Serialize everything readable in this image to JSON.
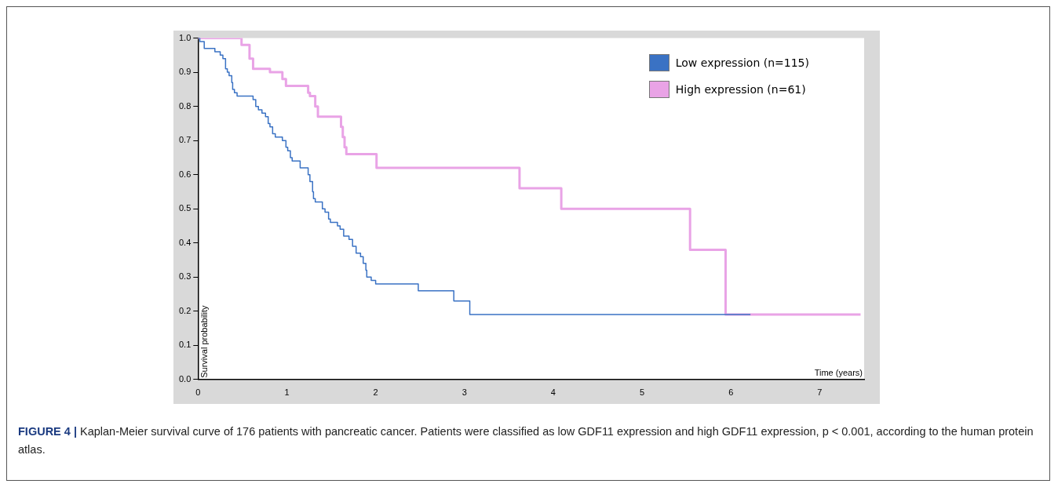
{
  "chart_data": {
    "type": "step",
    "xlabel": "Time (years)",
    "ylabel": "Survival probability",
    "xlim": [
      0,
      7.5
    ],
    "ylim": [
      0,
      1
    ],
    "xticks": [
      0,
      1,
      2,
      3,
      4,
      5,
      6,
      7
    ],
    "yticks": [
      {
        "value": 0,
        "label": "0.0"
      },
      {
        "value": 0.1,
        "label": "0.1"
      },
      {
        "value": 0.2,
        "label": "0.2"
      },
      {
        "value": 0.3,
        "label": "0.3"
      },
      {
        "value": 0.4,
        "label": "0.4"
      },
      {
        "value": 0.5,
        "label": "0.5"
      },
      {
        "value": 0.6,
        "label": "0.6"
      },
      {
        "value": 0.7,
        "label": "0.7"
      },
      {
        "value": 0.8,
        "label": "0.8"
      },
      {
        "value": 0.9,
        "label": "0.9"
      },
      {
        "value": 1,
        "label": "1.0"
      }
    ],
    "grid": false,
    "legend": "top right",
    "marker": "none",
    "line_style": "solid",
    "series": [
      {
        "name": "Low expression (n=115)",
        "color": "#3a72c4",
        "x": [
          0,
          0.02,
          0.07,
          0.11,
          0.19,
          0.25,
          0.28,
          0.31,
          0.33,
          0.35,
          0.38,
          0.39,
          0.41,
          0.44,
          0.62,
          0.65,
          0.68,
          0.72,
          0.76,
          0.79,
          0.81,
          0.84,
          0.87,
          0.95,
          0.99,
          1.01,
          1.04,
          1.06,
          1.15,
          1.24,
          1.26,
          1.29,
          1.3,
          1.32,
          1.4,
          1.43,
          1.47,
          1.49,
          1.57,
          1.6,
          1.64,
          1.7,
          1.74,
          1.78,
          1.83,
          1.86,
          1.89,
          1.9,
          1.95,
          2.0,
          2.48,
          2.88,
          3.06,
          6.22
        ],
        "values": [
          1,
          0.99,
          0.97,
          0.97,
          0.96,
          0.95,
          0.94,
          0.91,
          0.9,
          0.89,
          0.87,
          0.85,
          0.84,
          0.83,
          0.82,
          0.8,
          0.79,
          0.78,
          0.77,
          0.75,
          0.74,
          0.72,
          0.71,
          0.7,
          0.68,
          0.67,
          0.65,
          0.64,
          0.62,
          0.6,
          0.58,
          0.55,
          0.53,
          0.52,
          0.5,
          0.49,
          0.47,
          0.46,
          0.45,
          0.44,
          0.42,
          0.41,
          0.39,
          0.37,
          0.36,
          0.34,
          0.32,
          0.3,
          0.29,
          0.28,
          0.26,
          0.23,
          0.19,
          0.19
        ]
      },
      {
        "name": "High expression (n=61)",
        "color": "#e9a3e6",
        "x": [
          0,
          0.49,
          0.58,
          0.62,
          0.81,
          0.95,
          0.99,
          1.24,
          1.26,
          1.32,
          1.35,
          1.61,
          1.63,
          1.65,
          1.67,
          2.01,
          3.62,
          4.09,
          5.54,
          5.94,
          7.46
        ],
        "values": [
          1,
          0.98,
          0.94,
          0.91,
          0.9,
          0.88,
          0.86,
          0.84,
          0.83,
          0.8,
          0.77,
          0.74,
          0.71,
          0.68,
          0.66,
          0.62,
          0.56,
          0.5,
          0.38,
          0.19,
          0.19
        ]
      }
    ],
    "annotations": [
      "FIGURE 4 |",
      "Kaplan-Meier survival curve of 176 patients with pancreatic cancer. Patients were classified as low GDF11 expression and high GDF11 expression, p < 0.001, according to the human protein atlas."
    ]
  }
}
